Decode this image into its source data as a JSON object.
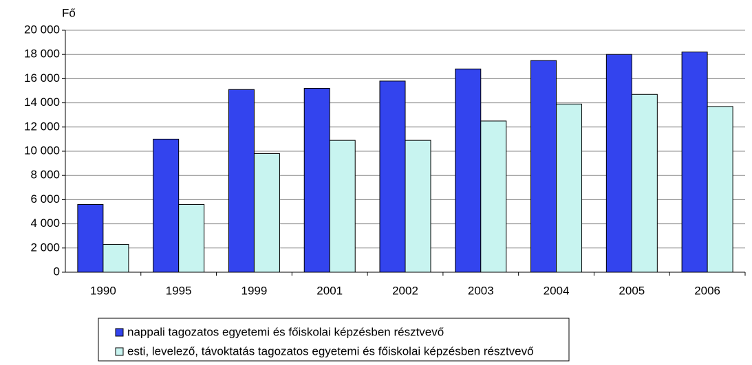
{
  "chart_data": {
    "type": "bar",
    "y_label": "Fő",
    "categories": [
      "1990",
      "1995",
      "1999",
      "2001",
      "2002",
      "2003",
      "2004",
      "2005",
      "2006"
    ],
    "series": [
      {
        "name": "nappali tagozatos egyetemi és főiskolai képzésben résztvevő",
        "color": "#3344ee",
        "values": [
          5600,
          11000,
          15100,
          15200,
          15800,
          16800,
          17500,
          18000,
          18200
        ]
      },
      {
        "name": "esti, levelező, távoktatás tagozatos egyetemi és főiskolai képzésben résztvevő",
        "color": "#c8f4f0",
        "values": [
          2300,
          5600,
          9800,
          10900,
          10900,
          12500,
          13900,
          14700,
          13700
        ]
      }
    ],
    "ylim": [
      0,
      20000
    ],
    "yticks": [
      0,
      {
        "value": 2000,
        "label": "2 000"
      },
      {
        "value": 4000,
        "label": "4 000"
      },
      {
        "value": 6000,
        "label": "6 000"
      },
      {
        "value": 8000,
        "label": "8 000"
      },
      {
        "value": 10000,
        "label": "10 000"
      },
      {
        "value": 12000,
        "label": "12 000"
      },
      {
        "value": 14000,
        "label": "14 000"
      },
      {
        "value": 16000,
        "label": "16 000"
      },
      {
        "value": 18000,
        "label": "18 000"
      },
      {
        "value": 20000,
        "label": "20 000"
      }
    ],
    "grid": true,
    "legend": "bottom"
  }
}
